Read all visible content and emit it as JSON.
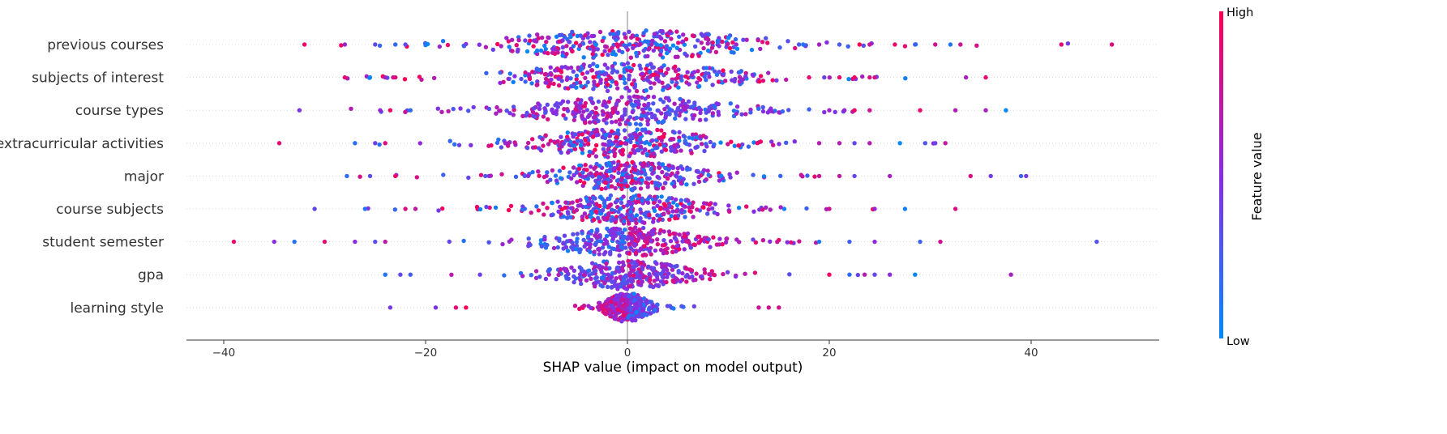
{
  "chart_data": {
    "type": "scatter",
    "subtype": "shap-beeswarm",
    "title": "",
    "xlabel": "SHAP value (impact on model output)",
    "ylabel": "",
    "xlim": [
      -44,
      52
    ],
    "xticks": [
      {
        "value": -40,
        "label": "−40"
      },
      {
        "value": -20,
        "label": "−20"
      },
      {
        "value": 0,
        "label": "0"
      },
      {
        "value": 20,
        "label": "20"
      },
      {
        "value": 40,
        "label": "40"
      }
    ],
    "colorbar": {
      "title": "Feature value",
      "high_label": "High",
      "low_label": "Low",
      "high_color": "#ff0052",
      "mid_color": "#8a2be2",
      "low_color": "#008bfb",
      "missing_color": "#777777"
    },
    "features": [
      {
        "name": "previous courses",
        "core_spread": 7.0,
        "tail_min": -32,
        "tail_max": 48,
        "outliers": [
          -32,
          -28,
          -25,
          -23,
          -22,
          17,
          19,
          21,
          23,
          24,
          26.5,
          28.5,
          30.5,
          32,
          33,
          43,
          48
        ],
        "color_trend": 0.0
      },
      {
        "name": "subjects of interest",
        "core_spread": 6.0,
        "tail_min": -28,
        "tail_max": 35,
        "outliers": [
          -28,
          -25.5,
          -24,
          -23,
          18,
          19.5,
          21,
          22.5,
          24,
          24.5,
          35.5
        ],
        "color_trend": 0.0
      },
      {
        "name": "course types",
        "core_spread": 5.5,
        "tail_min": -33,
        "tail_max": 38,
        "outliers": [
          -32.5,
          -24.5,
          -23.5,
          -21.5,
          20,
          21.5,
          22.5,
          24,
          29,
          32.5,
          35.5,
          37.5
        ],
        "color_trend": -0.3
      },
      {
        "name": "extracurricular activities",
        "core_spread": 5.0,
        "tail_min": -35,
        "tail_max": 32,
        "outliers": [
          -34.5,
          -27,
          -25,
          -24,
          19,
          21,
          22.5,
          24,
          27,
          29.5,
          30.5,
          31.5
        ],
        "color_trend": 0.0
      },
      {
        "name": "major",
        "core_spread": 4.0,
        "tail_min": -28,
        "tail_max": 40,
        "outliers": [
          -27.8,
          -25.5,
          -23,
          19,
          21,
          22.5,
          26,
          34,
          36,
          39,
          39.5
        ],
        "color_trend": 0.0
      },
      {
        "name": "course subjects",
        "core_spread": 4.0,
        "tail_min": -31,
        "tail_max": 33,
        "outliers": [
          -31,
          -26,
          -22,
          -21,
          20,
          24.5,
          27.5,
          32.5
        ],
        "color_trend": 0.0
      },
      {
        "name": "student semester",
        "core_spread": 4.0,
        "tail_min": -39,
        "tail_max": 47,
        "outliers": [
          -39,
          -35,
          -33,
          -30,
          -27,
          -25,
          -24,
          19,
          22,
          24.5,
          29,
          31,
          46.5
        ],
        "color_trend": 0.6
      },
      {
        "name": "gpa",
        "core_spread": 3.5,
        "tail_min": -24,
        "tail_max": 38,
        "outliers": [
          -24,
          -22.5,
          -21.5,
          20,
          22,
          23.5,
          24.5,
          26,
          28.5,
          38
        ],
        "color_trend": 0.3
      },
      {
        "name": "learning style",
        "core_spread": 1.2,
        "tail_min": -23,
        "tail_max": 15,
        "outliers": [
          -23.5,
          -19,
          -17,
          -16,
          13,
          14,
          15
        ],
        "color_trend": -0.7
      }
    ]
  }
}
